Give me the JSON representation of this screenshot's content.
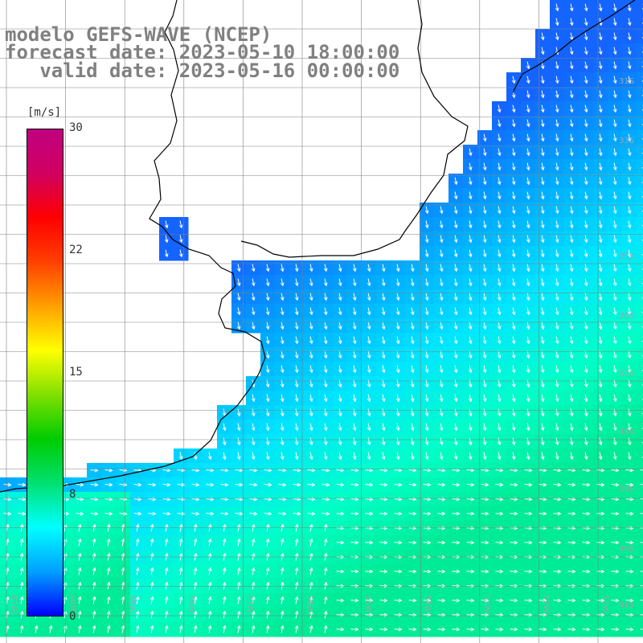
{
  "title": {
    "line1": "modelo GEFS-WAVE (NCEP)",
    "line2": "forecast date: 2023-05-10 18:00:00",
    "line3": "   valid date: 2023-05-16 00:00:00"
  },
  "colorbar": {
    "unit": "[m/s]",
    "ticks": [
      "30",
      "22",
      "15",
      "8",
      "0"
    ],
    "min": 0,
    "max": 30,
    "stops": [
      "#0000ff",
      "#00a0ff",
      "#00ffff",
      "#00e070",
      "#00cc00",
      "#80e000",
      "#ffff00",
      "#ffa000",
      "#ff4000",
      "#ff0000",
      "#d00060",
      "#c00080"
    ]
  },
  "latitude_labels": [
    "31S",
    "33S",
    "35S",
    "36S",
    "37S",
    "38S",
    "39S",
    "40S",
    "41S"
  ],
  "longitude_labels": [
    "61W",
    "60W",
    "59W",
    "58W",
    "57W",
    "56W",
    "55W",
    "54W",
    "53W",
    "52W",
    "51W"
  ],
  "colors": {
    "land": "#ffffff",
    "coast": "#000000",
    "grid": "#808080",
    "arrows": "#ffffff"
  }
}
